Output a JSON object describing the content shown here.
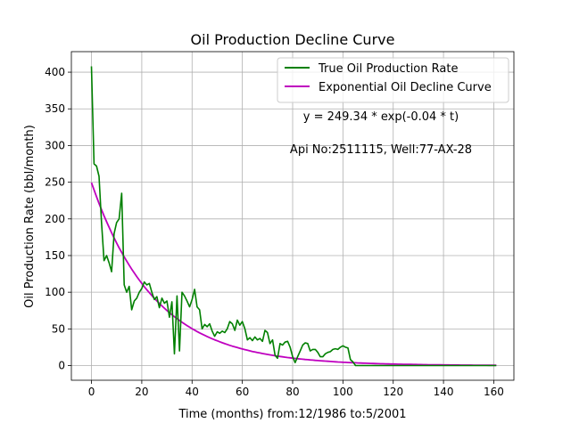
{
  "chart_data": {
    "type": "line",
    "title": "Oil Production Decline Curve",
    "xlabel": "Time (months) from:12/1986 to:5/2001",
    "ylabel": "Oil Production Rate (bbl/month)",
    "xlim": [
      -8,
      168
    ],
    "ylim": [
      -20,
      428
    ],
    "xticks": [
      0,
      20,
      40,
      60,
      80,
      100,
      120,
      140,
      160
    ],
    "yticks": [
      0,
      50,
      100,
      150,
      200,
      250,
      300,
      350,
      400
    ],
    "grid": true,
    "legend_position": "top-right",
    "annotations": [
      "y = 249.34 * exp(-0.04 * t)",
      "Api No:2511115, Well:77-AX-28"
    ],
    "series": [
      {
        "name": "True Oil Production Rate",
        "color": "#008000",
        "points": [
          [
            0,
            408
          ],
          [
            1,
            275
          ],
          [
            2,
            272
          ],
          [
            3,
            258
          ],
          [
            4,
            195
          ],
          [
            5,
            143
          ],
          [
            6,
            150
          ],
          [
            7,
            140
          ],
          [
            8,
            128
          ],
          [
            9,
            180
          ],
          [
            10,
            195
          ],
          [
            11,
            200
          ],
          [
            12,
            235
          ],
          [
            13,
            110
          ],
          [
            14,
            100
          ],
          [
            15,
            108
          ],
          [
            16,
            76
          ],
          [
            17,
            88
          ],
          [
            18,
            92
          ],
          [
            19,
            100
          ],
          [
            20,
            105
          ],
          [
            21,
            114
          ],
          [
            22,
            110
          ],
          [
            23,
            112
          ],
          [
            24,
            100
          ],
          [
            25,
            90
          ],
          [
            26,
            94
          ],
          [
            27,
            79
          ],
          [
            28,
            92
          ],
          [
            29,
            85
          ],
          [
            30,
            88
          ],
          [
            31,
            66
          ],
          [
            32,
            87
          ],
          [
            33,
            16
          ],
          [
            34,
            95
          ],
          [
            35,
            20
          ],
          [
            36,
            100
          ],
          [
            37,
            95
          ],
          [
            38,
            88
          ],
          [
            39,
            80
          ],
          [
            40,
            90
          ],
          [
            41,
            104
          ],
          [
            42,
            80
          ],
          [
            43,
            76
          ],
          [
            44,
            50
          ],
          [
            45,
            56
          ],
          [
            46,
            53
          ],
          [
            47,
            57
          ],
          [
            48,
            47
          ],
          [
            49,
            40
          ],
          [
            50,
            46
          ],
          [
            51,
            44
          ],
          [
            52,
            47
          ],
          [
            53,
            45
          ],
          [
            54,
            50
          ],
          [
            55,
            60
          ],
          [
            56,
            57
          ],
          [
            57,
            48
          ],
          [
            58,
            62
          ],
          [
            59,
            55
          ],
          [
            60,
            60
          ],
          [
            61,
            50
          ],
          [
            62,
            35
          ],
          [
            63,
            38
          ],
          [
            64,
            34
          ],
          [
            65,
            39
          ],
          [
            66,
            35
          ],
          [
            67,
            37
          ],
          [
            68,
            33
          ],
          [
            69,
            48
          ],
          [
            70,
            45
          ],
          [
            71,
            30
          ],
          [
            72,
            35
          ],
          [
            73,
            14
          ],
          [
            74,
            10
          ],
          [
            75,
            30
          ],
          [
            76,
            28
          ],
          [
            77,
            32
          ],
          [
            78,
            33
          ],
          [
            79,
            25
          ],
          [
            80,
            12
          ],
          [
            81,
            4
          ],
          [
            82,
            12
          ],
          [
            83,
            20
          ],
          [
            84,
            28
          ],
          [
            85,
            31
          ],
          [
            86,
            30
          ],
          [
            87,
            20
          ],
          [
            88,
            22
          ],
          [
            89,
            22
          ],
          [
            90,
            18
          ],
          [
            91,
            12
          ],
          [
            92,
            12
          ],
          [
            93,
            16
          ],
          [
            94,
            18
          ],
          [
            95,
            19
          ],
          [
            96,
            22
          ],
          [
            97,
            23
          ],
          [
            98,
            22
          ],
          [
            99,
            25
          ],
          [
            100,
            27
          ],
          [
            101,
            25
          ],
          [
            102,
            24
          ],
          [
            103,
            8
          ],
          [
            104,
            5
          ],
          [
            105,
            0
          ],
          [
            110,
            0
          ],
          [
            120,
            0
          ],
          [
            130,
            0
          ],
          [
            140,
            0
          ],
          [
            150,
            0
          ],
          [
            161,
            0
          ]
        ]
      },
      {
        "name": "Exponential Oil Decline Curve",
        "color": "#BF00BF",
        "function": {
          "a": 249.34,
          "b": 0.04,
          "xmin": 0,
          "xmax": 161
        }
      }
    ]
  }
}
